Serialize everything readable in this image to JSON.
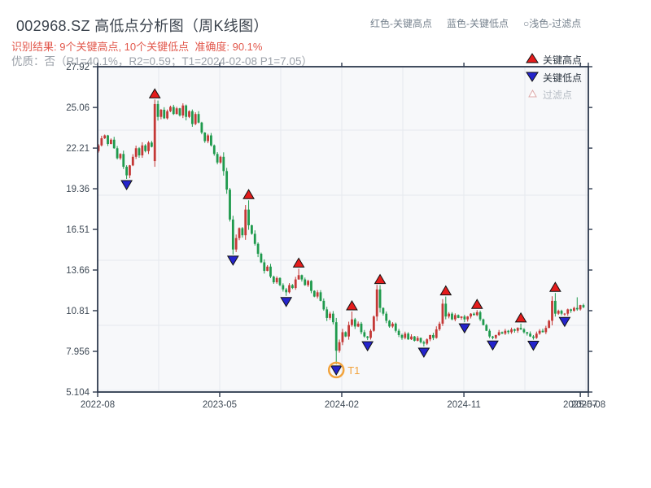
{
  "header": {
    "title": "002968.SZ 高低点分析图（周K线图）",
    "legend_note_high": "红色-关键高点",
    "legend_note_low": "蓝色-关键低点",
    "legend_note_filtered": "○浅色-过滤点",
    "result_line": "识别结果: 9个关键高点, 10个关键低点  准确度: 90.1%",
    "quality_line": "优质：否（R1=40.1%，R2=0.59；T1=2024-02-08 P1=7.05）"
  },
  "analysis": {
    "key_high_count": 9,
    "key_low_count": 10,
    "accuracy": "90.1%",
    "premium_quality": "否",
    "R1": "40.1%",
    "R2": "0.59",
    "T1": "2024-02-08",
    "P1": "7.05"
  },
  "chart_data": {
    "type": "candlestick-weekly",
    "symbol": "002968.SZ",
    "y_axis": {
      "min": 5.104,
      "max": 27.92,
      "tick_labels": [
        "27.92",
        "25.06",
        "22.21",
        "19.36",
        "16.51",
        "13.66",
        "10.81",
        "7.956",
        "5.104"
      ],
      "tick_values": [
        27.92,
        25.06,
        22.21,
        19.36,
        16.51,
        13.66,
        10.81,
        7.956,
        5.104
      ]
    },
    "x_axis": {
      "ticks": [
        {
          "label": "2022-08",
          "week": -0.26
        },
        {
          "label": "2023-05",
          "week": 38.75
        },
        {
          "label": "2024-02",
          "week": 77.76
        },
        {
          "label": "2024-11",
          "week": 116.8
        },
        {
          "label": "2025-07",
          "week": 154.0
        },
        {
          "label": "2025-08",
          "week": 156.6
        }
      ]
    },
    "weekly_closes": [
      22.4,
      22.9,
      23.1,
      22.5,
      22.8,
      22.2,
      21.5,
      21.8,
      20.9,
      20.3,
      21.0,
      21.6,
      22.2,
      21.7,
      22.4,
      22.0,
      22.6,
      22.3,
      25.3,
      24.4,
      24.9,
      24.3,
      24.8,
      25.1,
      24.6,
      25.0,
      24.5,
      25.2,
      24.4,
      24.8,
      23.9,
      24.6,
      24.0,
      23.3,
      22.7,
      23.1,
      22.4,
      21.8,
      21.2,
      21.6,
      20.6,
      19.3,
      17.2,
      15.1,
      15.9,
      16.6,
      16.1,
      17.9,
      16.8,
      16.2,
      15.5,
      14.8,
      14.2,
      13.6,
      13.9,
      13.2,
      12.8,
      13.1,
      12.6,
      12.3,
      12.1,
      12.6,
      12.4,
      13.0,
      13.3,
      13.0,
      12.6,
      12.9,
      12.2,
      11.8,
      12.1,
      11.5,
      10.9,
      10.3,
      10.6,
      10.0,
      8.0,
      8.6,
      9.3,
      9.0,
      9.8,
      10.2,
      9.7,
      9.9,
      9.3,
      9.0,
      8.9,
      9.4,
      10.4,
      12.3,
      11.0,
      10.6,
      10.1,
      9.7,
      9.9,
      9.4,
      9.1,
      8.9,
      9.2,
      8.8,
      9.0,
      8.7,
      8.9,
      8.6,
      8.5,
      8.8,
      9.1,
      8.9,
      9.5,
      9.9,
      11.3,
      10.4,
      10.6,
      10.2,
      10.5,
      10.3,
      10.4,
      10.2,
      10.4,
      10.6,
      10.5,
      10.7,
      10.2,
      9.8,
      9.4,
      9.0,
      8.9,
      9.1,
      9.3,
      9.2,
      9.4,
      9.3,
      9.5,
      9.4,
      9.6,
      9.5,
      9.3,
      9.2,
      9.0,
      8.9,
      9.2,
      9.4,
      9.3,
      9.6,
      10.1,
      11.5,
      10.6,
      10.8,
      10.6,
      10.6,
      10.9,
      10.8,
      11.0,
      10.9,
      11.2,
      11.05
    ],
    "candle_overrides": {
      "0": {
        "open": 22.0
      },
      "9": {
        "low": 20.05
      },
      "18": {
        "open": 21.3,
        "high": 25.62,
        "low": 20.9
      },
      "27": {
        "high": 25.35
      },
      "43": {
        "low": 14.75
      },
      "48": {
        "high": 18.55
      },
      "60": {
        "low": 11.85
      },
      "64": {
        "high": 13.75
      },
      "76": {
        "open": 10.0,
        "high": 10.3,
        "low": 7.05
      },
      "81": {
        "high": 10.75
      },
      "86": {
        "low": 8.75
      },
      "90": {
        "high": 12.6
      },
      "104": {
        "low": 8.3
      },
      "111": {
        "high": 11.8
      },
      "117": {
        "low": 10.0
      },
      "121": {
        "high": 10.85
      },
      "126": {
        "low": 8.8
      },
      "135": {
        "high": 9.9
      },
      "139": {
        "low": 8.78
      },
      "146": {
        "high": 12.05
      },
      "149": {
        "low": 10.45
      },
      "153": {
        "high": 11.75
      }
    },
    "key_highs": [
      {
        "week": 18,
        "price": 25.62,
        "date": "2022-12"
      },
      {
        "week": 48,
        "price": 18.55,
        "date": "2023-07"
      },
      {
        "week": 64,
        "price": 13.75,
        "date": "2023-10"
      },
      {
        "week": 81,
        "price": 10.75,
        "date": "2024-02"
      },
      {
        "week": 90,
        "price": 12.6,
        "date": "2024-04"
      },
      {
        "week": 111,
        "price": 11.8,
        "date": "2024-09"
      },
      {
        "week": 121,
        "price": 10.85,
        "date": "2024-11"
      },
      {
        "week": 135,
        "price": 9.9,
        "date": "2025-03"
      },
      {
        "week": 146,
        "price": 12.05,
        "date": "2025-05"
      }
    ],
    "key_lows": [
      {
        "week": 9,
        "price": 20.05,
        "date": "2022-10"
      },
      {
        "week": 43,
        "price": 14.75,
        "date": "2023-06"
      },
      {
        "week": 60,
        "price": 11.85,
        "date": "2023-09"
      },
      {
        "week": 76,
        "price": 7.05,
        "date": "2024-02-08",
        "annotation": "T1"
      },
      {
        "week": 86,
        "price": 8.75,
        "date": "2024-03"
      },
      {
        "week": 104,
        "price": 8.3,
        "date": "2024-08"
      },
      {
        "week": 117,
        "price": 10.0,
        "date": "2024-11"
      },
      {
        "week": 126,
        "price": 8.8,
        "date": "2025-01"
      },
      {
        "week": 139,
        "price": 8.78,
        "date": "2025-04"
      },
      {
        "week": 149,
        "price": 10.45,
        "date": "2025-06"
      }
    ],
    "legend": {
      "items": [
        {
          "label": "关键高点",
          "type": "key-high"
        },
        {
          "label": "关键低点",
          "type": "key-low"
        },
        {
          "label": "过滤点",
          "type": "filtered"
        }
      ]
    },
    "annotations": {
      "t1_label": "T1"
    },
    "colors": {
      "candle_up": "#c43836",
      "candle_down": "#1f9a4d",
      "key_high": "#e51c1c",
      "key_low": "#2424cc",
      "marker_edge": "#111111",
      "filtered_fill": "#ffffff",
      "filtered_edge": "#dda8a8",
      "t1_orange": "#f2a33c",
      "plot_bg": "#f7f8fa",
      "grid": "#e6e9ee",
      "border": "#2e3a4e",
      "tick_label": "#3f4a56",
      "legend_text": "#2b3540",
      "legend_muted": "#b6bcc4"
    }
  }
}
